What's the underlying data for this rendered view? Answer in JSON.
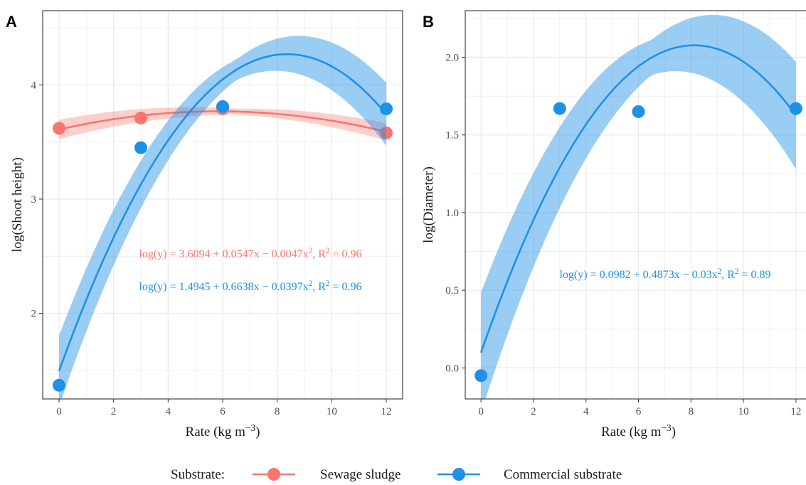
{
  "colors": {
    "sewage": "#F8766D",
    "commercial": "#1E90E6",
    "grid": "#ebebeb",
    "border": "#333333"
  },
  "legend": {
    "title": "Substrate:",
    "items": [
      {
        "label": "Sewage sludge",
        "color": "#F8766D"
      },
      {
        "label": "Commercial substrate",
        "color": "#1E90E6"
      }
    ]
  },
  "chart_data": [
    {
      "type": "scatter",
      "panel": "A",
      "xlabel": "Rate (kg m⁻³)",
      "ylabel": "log(Shoot height)",
      "xlim": [
        -0.6,
        12.6
      ],
      "ylim": [
        1.25,
        4.65
      ],
      "xticks": [
        0,
        2,
        4,
        6,
        8,
        10,
        12
      ],
      "yticks": [
        2,
        3,
        4
      ],
      "grid": true,
      "series": [
        {
          "name": "Sewage sludge",
          "points": {
            "x": [
              0,
              3,
              6,
              12
            ],
            "y": [
              3.62,
              3.71,
              3.79,
              3.58
            ]
          },
          "fit": {
            "a": 3.6094,
            "b": 0.0547,
            "c": -0.0047,
            "band": 0.055
          },
          "equation": "log(y) = 3.6094 + 0.0547x − 0.0047x², R² = 0.96"
        },
        {
          "name": "Commercial substrate",
          "points": {
            "x": [
              0,
              3,
              6,
              12
            ],
            "y": [
              1.37,
              3.45,
              3.81,
              3.79
            ]
          },
          "fit": {
            "a": 1.4945,
            "b": 0.6638,
            "c": -0.0397,
            "band": 0.2
          },
          "equation": "log(y) = 1.4945 + 0.6638x − 0.0397x², R² = 0.96"
        }
      ]
    },
    {
      "type": "scatter",
      "panel": "B",
      "xlabel": "Rate (kg m⁻³)",
      "ylabel": "log(Diameter)",
      "xlim": [
        -0.6,
        12.6
      ],
      "ylim": [
        -0.2,
        2.3
      ],
      "xticks": [
        0,
        2,
        4,
        6,
        8,
        10,
        12
      ],
      "yticks": [
        0.0,
        0.5,
        1.0,
        1.5,
        2.0
      ],
      "grid": true,
      "series": [
        {
          "name": "Commercial substrate",
          "points": {
            "x": [
              0,
              3,
              6,
              12
            ],
            "y": [
              -0.05,
              1.67,
              1.65,
              1.67
            ]
          },
          "fit": {
            "a": 0.0982,
            "b": 0.4873,
            "c": -0.03,
            "band": 0.25
          },
          "equation": "log(y) = 0.0982 + 0.4873x − 0.03x², R² = 0.89"
        }
      ]
    }
  ]
}
